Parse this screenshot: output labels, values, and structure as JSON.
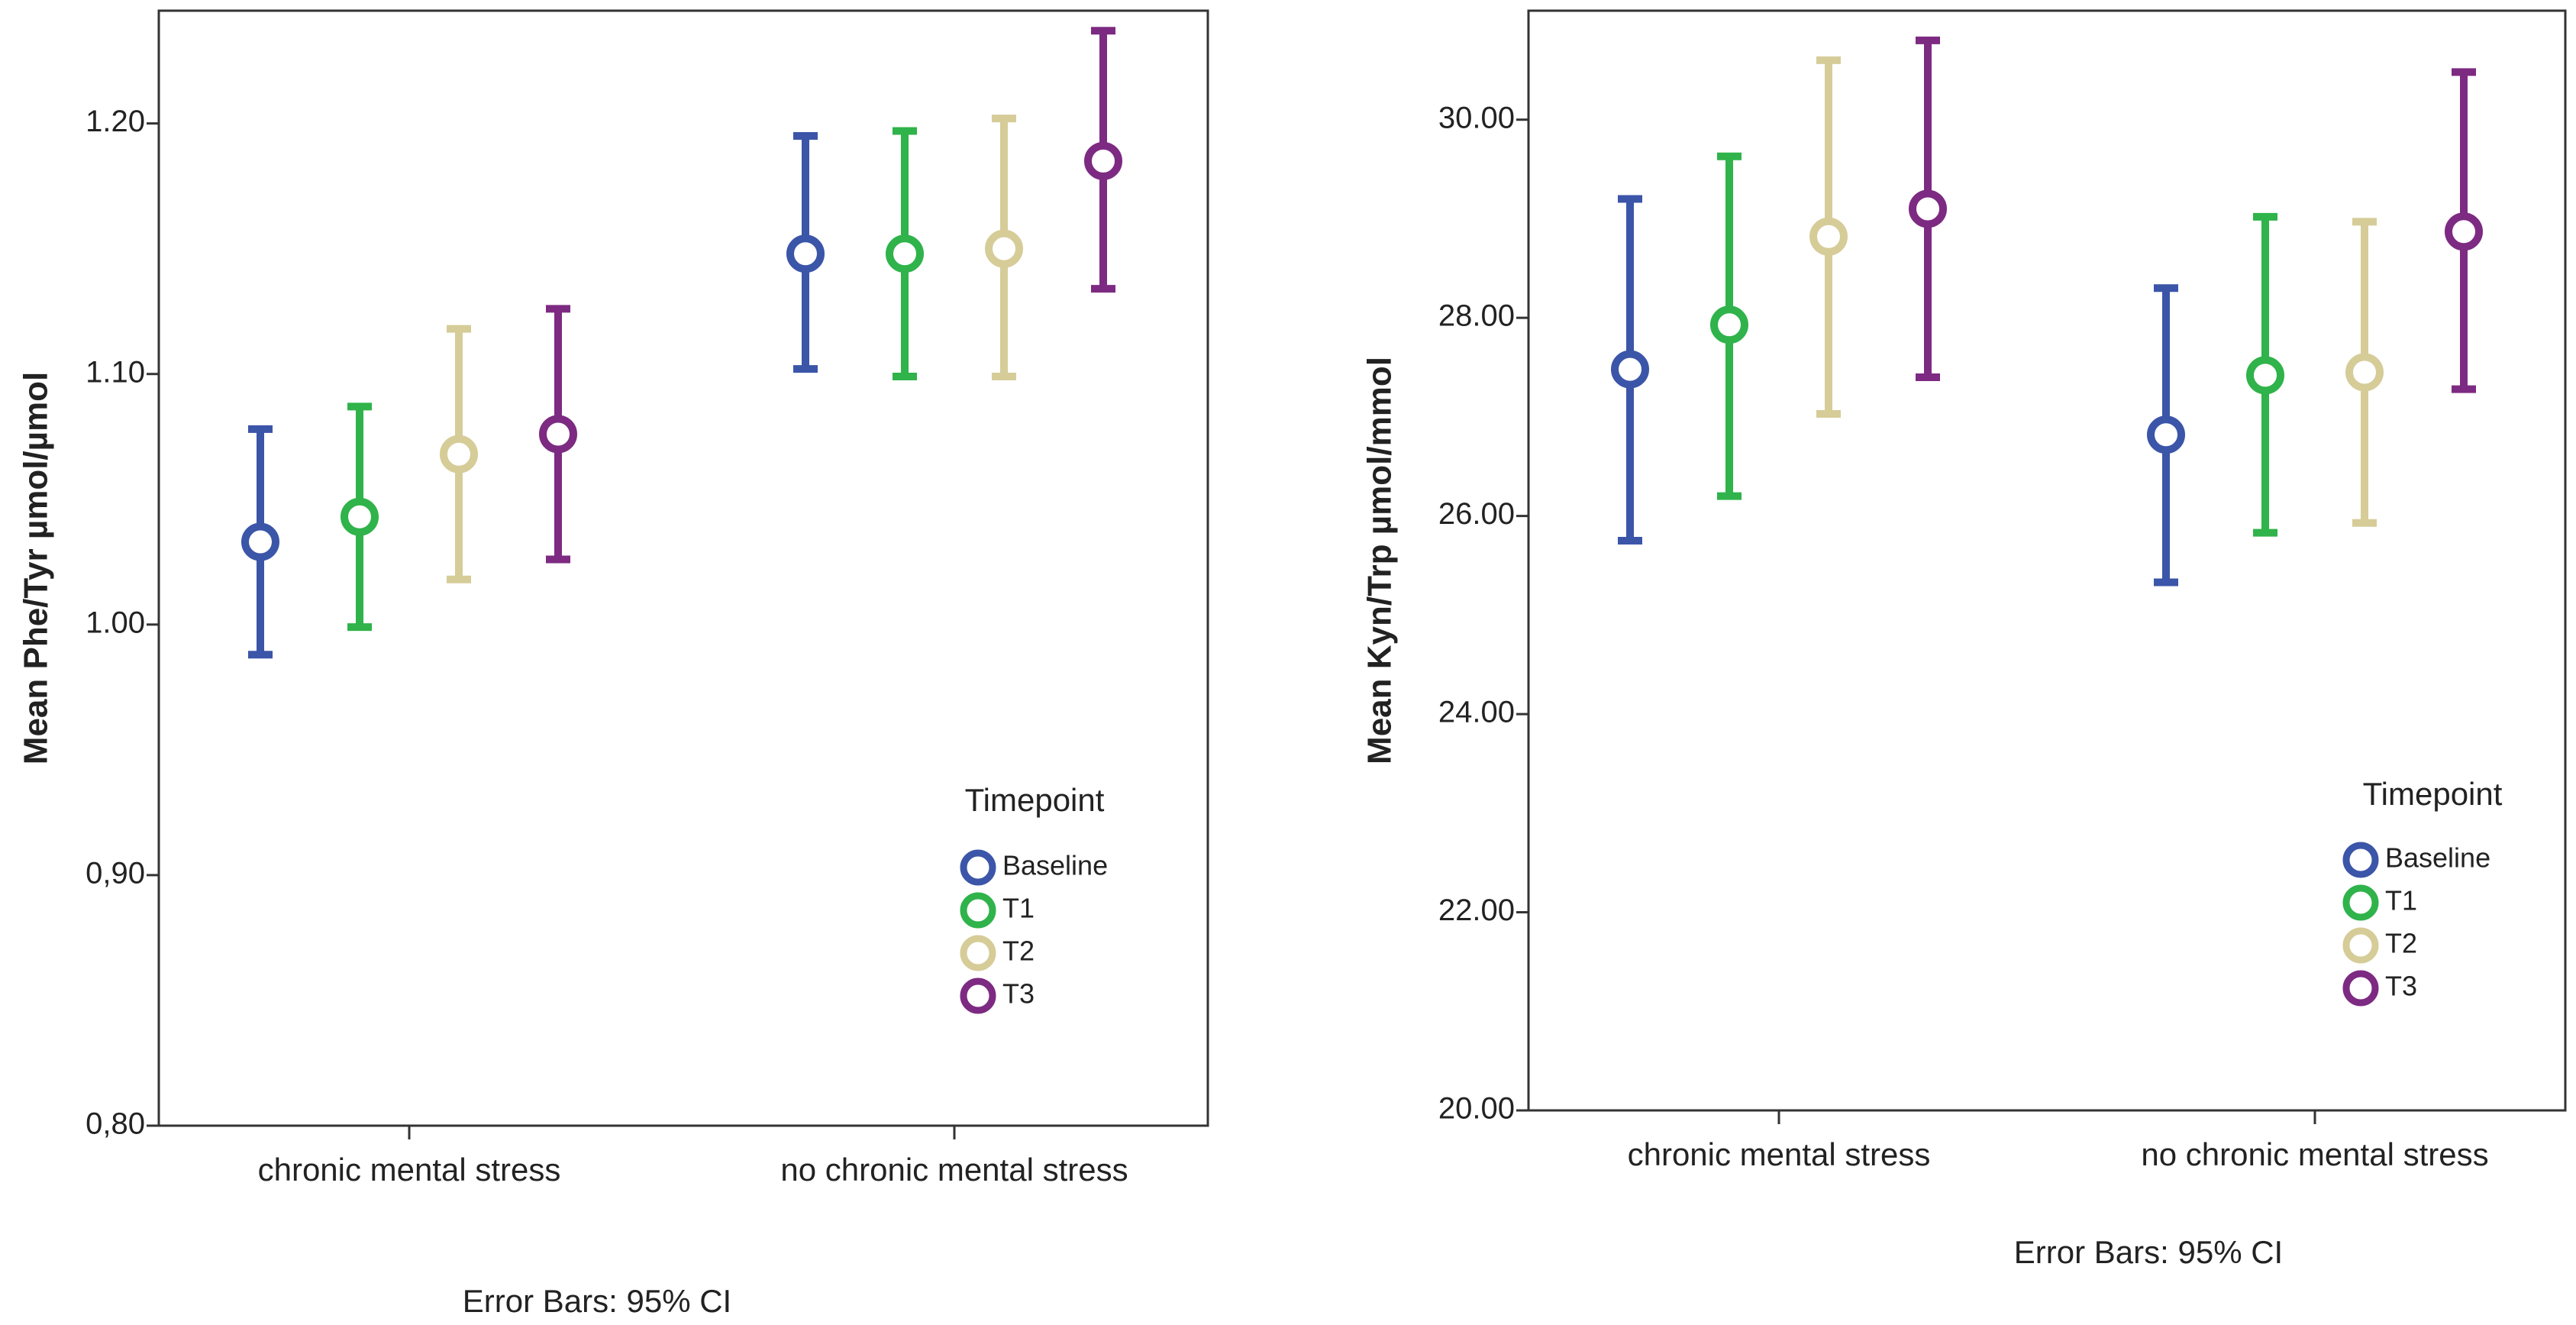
{
  "chart_data": [
    {
      "type": "errorbar",
      "id": "phe-tyr",
      "ylabel": "Mean Phe/Tyr µmol/µmol",
      "xlabel": "",
      "ylim": [
        0.8,
        1.245
      ],
      "yticks": [
        0.8,
        0.9,
        1.0,
        1.1,
        1.2
      ],
      "ytick_labels": [
        "0,80",
        "0,90",
        "1.00",
        "1.10",
        "1.20"
      ],
      "categories": [
        "chronic mental stress",
        "no chronic mental stress"
      ],
      "legend_title": "Timepoint",
      "legend_position": "lower-right",
      "footer": "Error Bars: 95% CI",
      "series": [
        {
          "name": "Baseline",
          "color": "#3b55a8",
          "mean": [
            1.033,
            1.148
          ],
          "lower": [
            0.988,
            1.102
          ],
          "upper": [
            1.078,
            1.195
          ]
        },
        {
          "name": "T1",
          "color": "#2fb34a",
          "mean": [
            1.043,
            1.148
          ],
          "lower": [
            0.999,
            1.099
          ],
          "upper": [
            1.087,
            1.197
          ]
        },
        {
          "name": "T2",
          "color": "#d6cc98",
          "mean": [
            1.068,
            1.15
          ],
          "lower": [
            1.018,
            1.099
          ],
          "upper": [
            1.118,
            1.202
          ]
        },
        {
          "name": "T3",
          "color": "#7d2a82",
          "mean": [
            1.076,
            1.185
          ],
          "lower": [
            1.026,
            1.134
          ],
          "upper": [
            1.126,
            1.237
          ]
        }
      ]
    },
    {
      "type": "errorbar",
      "id": "kyn-trp",
      "ylabel": "Mean Kyn/Trp µmol/mmol",
      "xlabel": "",
      "ylim": [
        20.0,
        31.1
      ],
      "yticks": [
        20,
        22,
        24,
        26,
        28,
        30
      ],
      "ytick_labels": [
        "20.00",
        "22.00",
        "24.00",
        "26.00",
        "28.00",
        "30.00"
      ],
      "categories": [
        "chronic mental stress",
        "no chronic mental stress"
      ],
      "legend_title": "Timepoint",
      "legend_position": "lower-right",
      "footer": "Error Bars: 95% CI",
      "series": [
        {
          "name": "Baseline",
          "color": "#3b55a8",
          "mean": [
            27.48,
            26.82
          ],
          "lower": [
            25.75,
            25.33
          ],
          "upper": [
            29.2,
            28.3
          ]
        },
        {
          "name": "T1",
          "color": "#2fb34a",
          "mean": [
            27.93,
            27.42
          ],
          "lower": [
            26.2,
            25.83
          ],
          "upper": [
            29.63,
            29.02
          ]
        },
        {
          "name": "T2",
          "color": "#d6cc98",
          "mean": [
            28.82,
            27.45
          ],
          "lower": [
            27.03,
            25.93
          ],
          "upper": [
            30.6,
            28.97
          ]
        },
        {
          "name": "T3",
          "color": "#7d2a82",
          "mean": [
            29.1,
            28.87
          ],
          "lower": [
            27.4,
            27.28
          ],
          "upper": [
            30.8,
            30.48
          ]
        }
      ]
    }
  ]
}
